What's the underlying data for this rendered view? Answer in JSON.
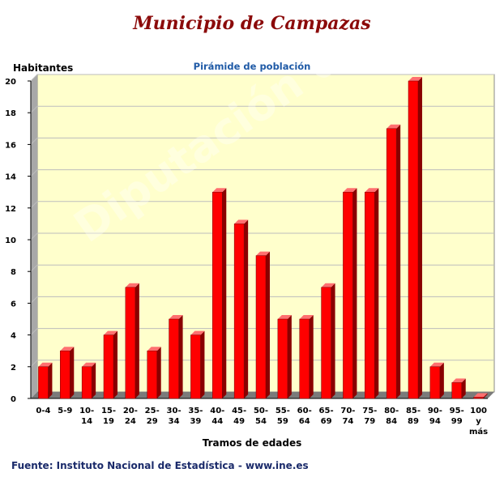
{
  "header": {
    "title": "Municipio de Campazas",
    "subtitle": "Pirámide de población"
  },
  "watermark": "Diputación de León",
  "footer": {
    "source": "Fuente: Instituto Nacional de Estadística - www.ine.es"
  },
  "chart_data": {
    "type": "bar",
    "title": "Pirámide de población",
    "xlabel": "Tramos de edades",
    "ylabel": "Habitantes",
    "ylim": [
      0,
      20
    ],
    "yticks": [
      0,
      2,
      4,
      6,
      8,
      10,
      12,
      14,
      16,
      18,
      20
    ],
    "grid": true,
    "categories": [
      [
        "0-4"
      ],
      [
        "5-9"
      ],
      [
        "10-",
        "14"
      ],
      [
        "15-",
        "19"
      ],
      [
        "20-",
        "24"
      ],
      [
        "25-",
        "29"
      ],
      [
        "30-",
        "34"
      ],
      [
        "35-",
        "39"
      ],
      [
        "40-",
        "44"
      ],
      [
        "45-",
        "49"
      ],
      [
        "50-",
        "54"
      ],
      [
        "55-",
        "59"
      ],
      [
        "60-",
        "64"
      ],
      [
        "65-",
        "69"
      ],
      [
        "70-",
        "74"
      ],
      [
        "75-",
        "79"
      ],
      [
        "80-",
        "84"
      ],
      [
        "85-",
        "89"
      ],
      [
        "90-",
        "94"
      ],
      [
        "95-",
        "99"
      ],
      [
        "100",
        "y",
        "más"
      ]
    ],
    "values": [
      2,
      3,
      2,
      4,
      7,
      3,
      5,
      4,
      13,
      11,
      9,
      5,
      5,
      7,
      13,
      13,
      17,
      20,
      2,
      1,
      0
    ],
    "colors": {
      "bar": "#ff0000",
      "bar_top": "#ff7070",
      "bar_side": "#8a0000",
      "plot_bg": "#ffffcc",
      "wall": "#a8a8a8",
      "floor": "#7a7a7a",
      "grid": "#bdbdbd"
    }
  }
}
